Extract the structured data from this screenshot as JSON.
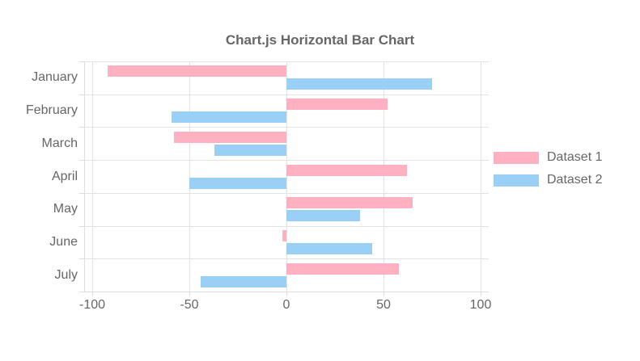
{
  "title": "Chart.js Horizontal Bar Chart",
  "chart_data": {
    "type": "bar",
    "orientation": "horizontal",
    "title": "Chart.js Horizontal Bar Chart",
    "categories": [
      "January",
      "February",
      "March",
      "April",
      "May",
      "June",
      "July"
    ],
    "series": [
      {
        "name": "Dataset 1",
        "color": "#ffb1c1",
        "values": [
          -92,
          52,
          -58,
          62,
          65,
          -2,
          58
        ]
      },
      {
        "name": "Dataset 2",
        "color": "#9ad0f5",
        "values": [
          75,
          -59,
          -37,
          -50,
          38,
          44,
          -44
        ]
      }
    ],
    "xlim": [
      -100,
      100
    ],
    "x_ticks": [
      "-100",
      "-50",
      "0",
      "50",
      "100"
    ],
    "x_tick_values": [
      -100,
      -50,
      0,
      50,
      100
    ],
    "grid": true,
    "legend_position": "right",
    "text_color": "#666666",
    "grid_color": "#e3e3e3",
    "background_color": "#ffffff"
  }
}
